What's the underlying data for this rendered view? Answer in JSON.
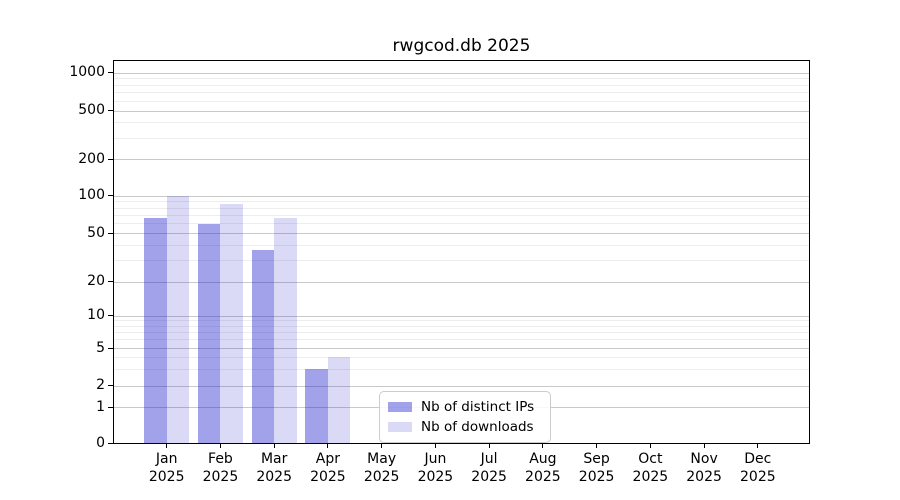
{
  "title": "rwgcod.db 2025",
  "chart_data": {
    "type": "bar",
    "title": "rwgcod.db 2025",
    "categories": [
      "Jan",
      "Feb",
      "Mar",
      "Apr",
      "May",
      "Jun",
      "Jul",
      "Aug",
      "Sep",
      "Oct",
      "Nov",
      "Dec"
    ],
    "year": "2025",
    "series": [
      {
        "name": "Nb of distinct IPs",
        "color": "rgba(34,34,204,0.42)",
        "values": [
          66,
          59,
          36,
          3,
          0,
          0,
          0,
          0,
          0,
          0,
          0,
          0
        ]
      },
      {
        "name": "Nb of downloads",
        "color": "rgba(34,34,204,0.17)",
        "values": [
          100,
          86,
          66,
          4,
          0,
          0,
          0,
          0,
          0,
          0,
          0,
          0
        ]
      }
    ],
    "yticks": [
      0,
      1,
      2,
      5,
      10,
      20,
      50,
      100,
      200,
      500,
      1000
    ],
    "ytick_labels": [
      "0",
      "1",
      "2",
      "5",
      "10",
      "20",
      "50",
      "100",
      "200",
      "500",
      "1000"
    ],
    "ylim": [
      0,
      1300
    ],
    "scale": "pseudo-log with linear 0-1 segment",
    "grid": "horizontal major and minor gridlines",
    "legend_position": "inside plot, lower center-left",
    "colors": {
      "major_grid": "#c9c9c9",
      "minor_grid": "#ededed",
      "spine": "#000000"
    }
  }
}
